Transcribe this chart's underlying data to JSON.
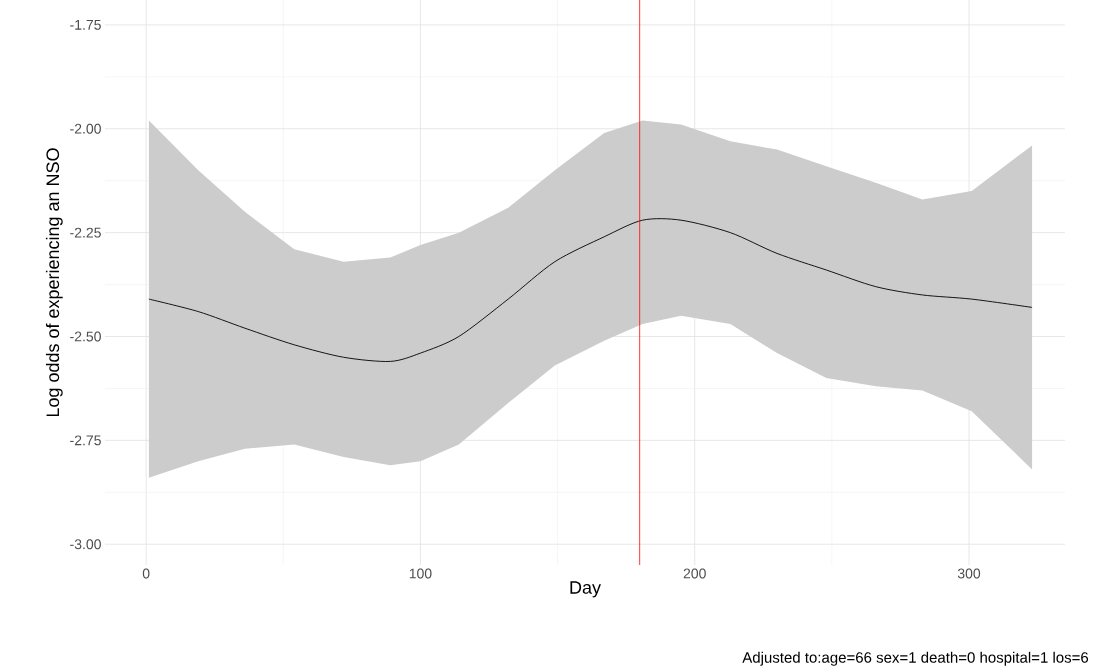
{
  "chart_data": {
    "type": "line",
    "xlabel": "Day",
    "ylabel": "Log odds of experiencing an NSO",
    "annotations": [
      "Adjusted to:age=66 sex=1 death=0 hospital=1 los=6"
    ],
    "x": [
      1,
      19,
      36,
      54,
      72,
      89,
      100,
      114,
      132,
      149,
      167,
      181,
      195,
      213,
      230,
      248,
      266,
      283,
      301,
      323
    ],
    "series": [
      {
        "color": "#000000",
        "values": [
          -2.41,
          -2.44,
          -2.48,
          -2.52,
          -2.55,
          -2.56,
          -2.54,
          -2.5,
          -2.41,
          -2.32,
          -2.26,
          -2.22,
          -2.22,
          -2.25,
          -2.3,
          -2.34,
          -2.38,
          -2.4,
          -2.41,
          -2.43
        ],
        "upper": [
          -1.98,
          -2.1,
          -2.2,
          -2.29,
          -2.32,
          -2.31,
          -2.28,
          -2.25,
          -2.19,
          -2.1,
          -2.01,
          -1.98,
          -1.99,
          -2.03,
          -2.05,
          -2.09,
          -2.13,
          -2.17,
          -2.15,
          -2.04
        ],
        "lower": [
          -2.84,
          -2.8,
          -2.77,
          -2.76,
          -2.79,
          -2.81,
          -2.8,
          -2.76,
          -2.66,
          -2.57,
          -2.51,
          -2.47,
          -2.45,
          -2.47,
          -2.54,
          -2.6,
          -2.62,
          -2.63,
          -2.68,
          -2.82
        ]
      }
    ],
    "ref_lines": [
      {
        "axis": "x",
        "value": 180,
        "color": "#ff0000"
      }
    ],
    "xlim": [
      -15,
      335
    ],
    "ylim": [
      -3.05,
      -1.69
    ],
    "xticks": [
      0,
      100,
      200,
      300
    ],
    "yticks": [
      {
        "value": -3,
        "label": "-3.00"
      },
      {
        "value": -2.75,
        "label": "-2.75"
      },
      {
        "value": -2.5,
        "label": "-2.50"
      },
      {
        "value": -2.25,
        "label": "-2.25"
      },
      {
        "value": -2,
        "label": "-2.00"
      },
      {
        "value": -1.75,
        "label": "-1.75"
      }
    ],
    "grid": true,
    "marker": "none",
    "line_style": "solid"
  }
}
